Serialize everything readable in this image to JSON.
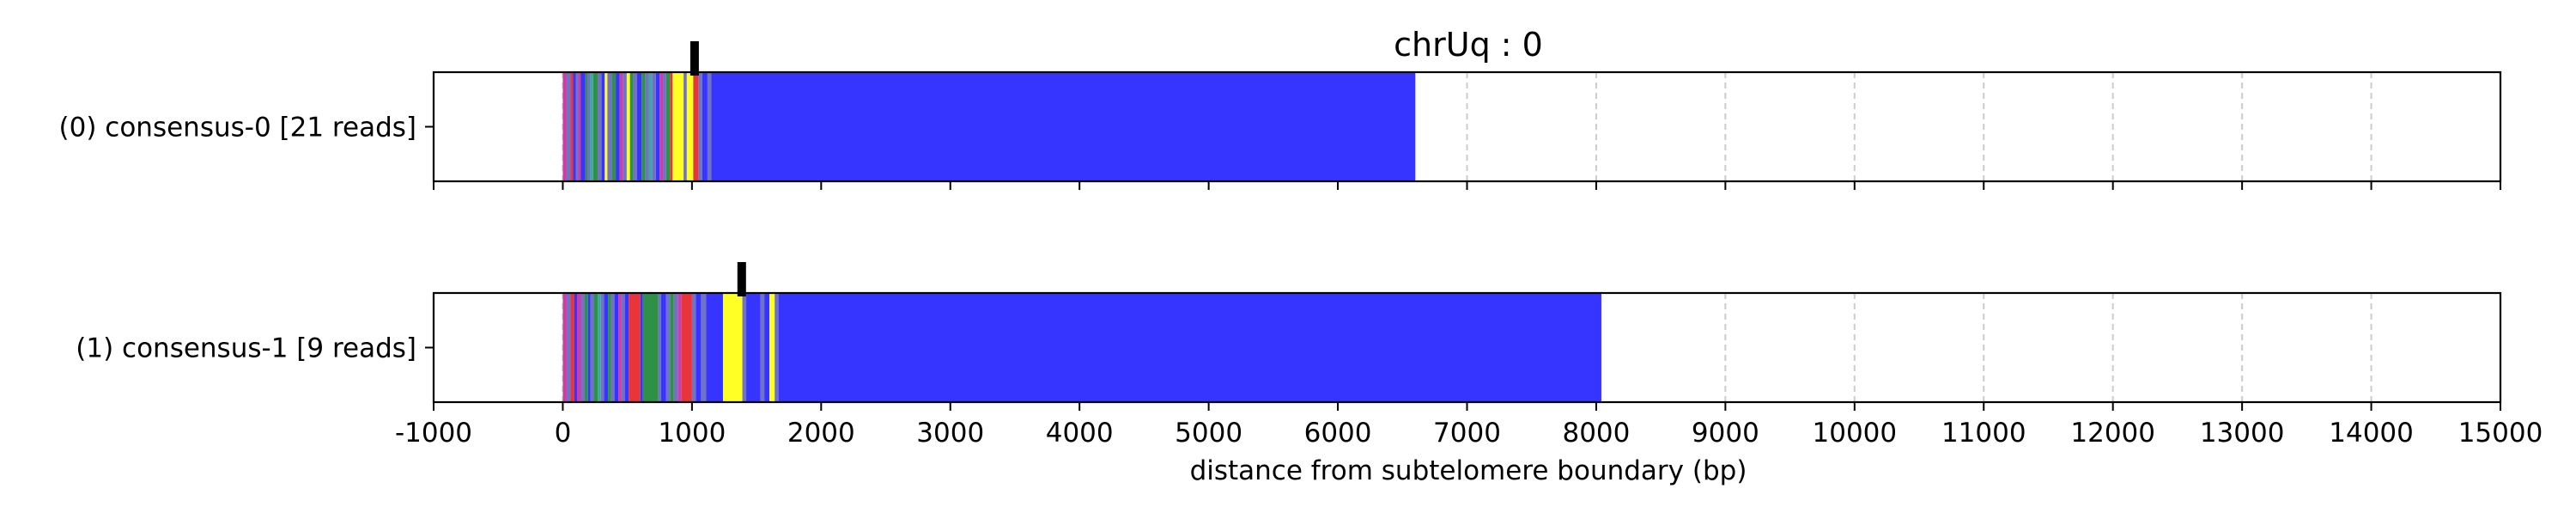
{
  "chart_data": {
    "type": "bar",
    "title": "chrUq : 0",
    "xlabel": "distance from subtelomere boundary (bp)",
    "ylabel": "",
    "xlim": [
      -1000,
      15000
    ],
    "xticks": [
      -1000,
      0,
      1000,
      2000,
      3000,
      4000,
      5000,
      6000,
      7000,
      8000,
      9000,
      10000,
      11000,
      12000,
      13000,
      14000,
      15000
    ],
    "grid": "vertical dashed",
    "colors": {
      "blue": "#3535ff",
      "green": "#2e9146",
      "red": "#e8353a",
      "yellow": "#ffff26",
      "magenta": "#cc3da6",
      "slate": "#7171c5",
      "teal": "#3ea8a0",
      "grid": "#cccccc",
      "marker": "#000000"
    },
    "tracks": [
      {
        "label": "(0) consensus-0 [21 reads]",
        "end": 6600,
        "marker": 1020,
        "segments": [
          {
            "start": 0,
            "end": 30,
            "color": "magenta"
          },
          {
            "start": 30,
            "end": 60,
            "color": "slate"
          },
          {
            "start": 60,
            "end": 80,
            "color": "red"
          },
          {
            "start": 80,
            "end": 100,
            "color": "blue"
          },
          {
            "start": 100,
            "end": 120,
            "color": "slate"
          },
          {
            "start": 120,
            "end": 140,
            "color": "magenta"
          },
          {
            "start": 140,
            "end": 175,
            "color": "blue"
          },
          {
            "start": 175,
            "end": 190,
            "color": "green"
          },
          {
            "start": 190,
            "end": 210,
            "color": "slate"
          },
          {
            "start": 210,
            "end": 235,
            "color": "teal"
          },
          {
            "start": 235,
            "end": 270,
            "color": "green"
          },
          {
            "start": 270,
            "end": 300,
            "color": "slate"
          },
          {
            "start": 300,
            "end": 325,
            "color": "blue"
          },
          {
            "start": 325,
            "end": 345,
            "color": "yellow"
          },
          {
            "start": 345,
            "end": 380,
            "color": "slate"
          },
          {
            "start": 380,
            "end": 410,
            "color": "green"
          },
          {
            "start": 410,
            "end": 440,
            "color": "blue"
          },
          {
            "start": 440,
            "end": 465,
            "color": "magenta"
          },
          {
            "start": 465,
            "end": 495,
            "color": "slate"
          },
          {
            "start": 495,
            "end": 520,
            "color": "yellow"
          },
          {
            "start": 520,
            "end": 545,
            "color": "green"
          },
          {
            "start": 545,
            "end": 575,
            "color": "slate"
          },
          {
            "start": 575,
            "end": 610,
            "color": "blue"
          },
          {
            "start": 610,
            "end": 640,
            "color": "green"
          },
          {
            "start": 640,
            "end": 665,
            "color": "slate"
          },
          {
            "start": 665,
            "end": 690,
            "color": "teal"
          },
          {
            "start": 690,
            "end": 720,
            "color": "slate"
          },
          {
            "start": 720,
            "end": 750,
            "color": "blue"
          },
          {
            "start": 750,
            "end": 775,
            "color": "magenta"
          },
          {
            "start": 775,
            "end": 800,
            "color": "slate"
          },
          {
            "start": 800,
            "end": 830,
            "color": "green"
          },
          {
            "start": 830,
            "end": 850,
            "color": "red"
          },
          {
            "start": 850,
            "end": 935,
            "color": "yellow"
          },
          {
            "start": 935,
            "end": 960,
            "color": "slate"
          },
          {
            "start": 960,
            "end": 1010,
            "color": "yellow"
          },
          {
            "start": 1010,
            "end": 1050,
            "color": "red"
          },
          {
            "start": 1050,
            "end": 1080,
            "color": "slate"
          },
          {
            "start": 1080,
            "end": 1120,
            "color": "blue"
          },
          {
            "start": 1120,
            "end": 1150,
            "color": "slate"
          },
          {
            "start": 1150,
            "end": 6600,
            "color": "blue"
          }
        ]
      },
      {
        "label": "(1) consensus-1 [9 reads]",
        "end": 8040,
        "marker": 1385,
        "segments": [
          {
            "start": 0,
            "end": 30,
            "color": "magenta"
          },
          {
            "start": 30,
            "end": 60,
            "color": "slate"
          },
          {
            "start": 60,
            "end": 90,
            "color": "red"
          },
          {
            "start": 90,
            "end": 110,
            "color": "blue"
          },
          {
            "start": 110,
            "end": 140,
            "color": "magenta"
          },
          {
            "start": 140,
            "end": 170,
            "color": "slate"
          },
          {
            "start": 170,
            "end": 195,
            "color": "green"
          },
          {
            "start": 195,
            "end": 215,
            "color": "blue"
          },
          {
            "start": 215,
            "end": 240,
            "color": "slate"
          },
          {
            "start": 240,
            "end": 270,
            "color": "green"
          },
          {
            "start": 270,
            "end": 295,
            "color": "teal"
          },
          {
            "start": 295,
            "end": 320,
            "color": "slate"
          },
          {
            "start": 320,
            "end": 350,
            "color": "blue"
          },
          {
            "start": 350,
            "end": 375,
            "color": "green"
          },
          {
            "start": 375,
            "end": 400,
            "color": "slate"
          },
          {
            "start": 400,
            "end": 430,
            "color": "blue"
          },
          {
            "start": 430,
            "end": 455,
            "color": "magenta"
          },
          {
            "start": 455,
            "end": 480,
            "color": "slate"
          },
          {
            "start": 480,
            "end": 510,
            "color": "blue"
          },
          {
            "start": 510,
            "end": 600,
            "color": "red"
          },
          {
            "start": 600,
            "end": 620,
            "color": "blue"
          },
          {
            "start": 620,
            "end": 740,
            "color": "green"
          },
          {
            "start": 740,
            "end": 760,
            "color": "slate"
          },
          {
            "start": 760,
            "end": 800,
            "color": "blue"
          },
          {
            "start": 800,
            "end": 830,
            "color": "slate"
          },
          {
            "start": 830,
            "end": 860,
            "color": "green"
          },
          {
            "start": 860,
            "end": 890,
            "color": "slate"
          },
          {
            "start": 890,
            "end": 920,
            "color": "magenta"
          },
          {
            "start": 920,
            "end": 1000,
            "color": "red"
          },
          {
            "start": 1000,
            "end": 1030,
            "color": "slate"
          },
          {
            "start": 1030,
            "end": 1070,
            "color": "blue"
          },
          {
            "start": 1070,
            "end": 1110,
            "color": "slate"
          },
          {
            "start": 1110,
            "end": 1240,
            "color": "blue"
          },
          {
            "start": 1240,
            "end": 1390,
            "color": "yellow"
          },
          {
            "start": 1390,
            "end": 1420,
            "color": "slate"
          },
          {
            "start": 1420,
            "end": 1530,
            "color": "blue"
          },
          {
            "start": 1530,
            "end": 1560,
            "color": "slate"
          },
          {
            "start": 1560,
            "end": 1600,
            "color": "blue"
          },
          {
            "start": 1600,
            "end": 1640,
            "color": "yellow"
          },
          {
            "start": 1640,
            "end": 1670,
            "color": "slate"
          },
          {
            "start": 1670,
            "end": 8040,
            "color": "blue"
          }
        ]
      }
    ]
  }
}
